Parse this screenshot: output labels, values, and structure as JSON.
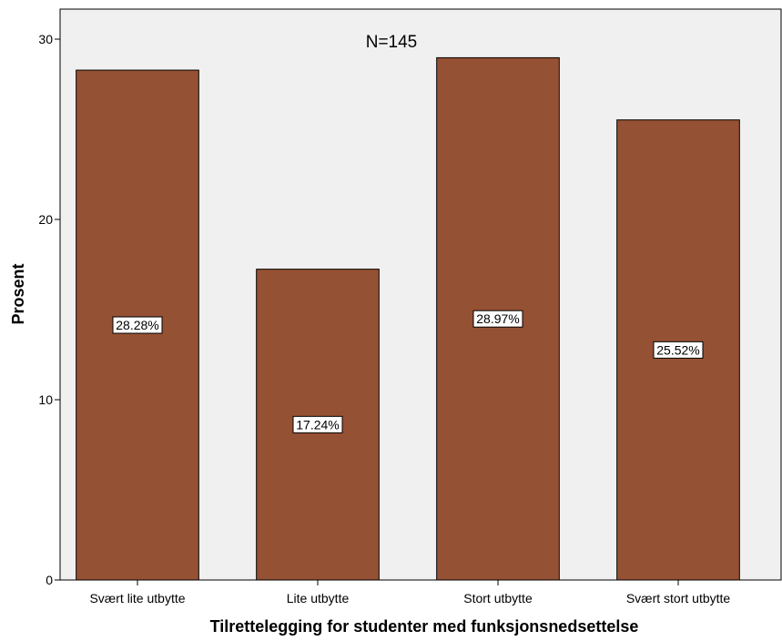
{
  "chart_data": {
    "type": "bar",
    "title": "",
    "annotation": "N=145",
    "xlabel": "Tilrettelegging for studenter med funksjonsnedsettelse",
    "ylabel": "Prosent",
    "ylim": [
      0,
      30
    ],
    "yticks": [
      0,
      10,
      20,
      30
    ],
    "grid": false,
    "legend": "none",
    "categories": [
      "Svært lite utbytte",
      "Lite utbytte",
      "Stort utbytte",
      "Svært stort utbytte"
    ],
    "values": [
      28.28,
      17.24,
      28.97,
      25.52
    ],
    "data_labels": [
      "28.28%",
      "17.24%",
      "28.97%",
      "25.52%"
    ],
    "colors": {
      "bar": "#955133",
      "plot_background": "#f0f0f0",
      "label_background": "#ffffff"
    }
  }
}
